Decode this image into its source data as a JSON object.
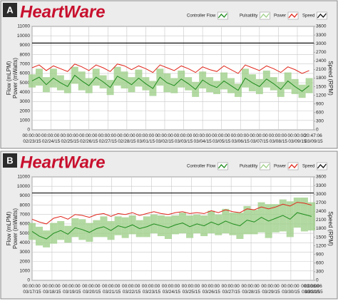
{
  "chart_data": [
    {
      "type": "line",
      "panel": "A",
      "title": "HeartWare",
      "ylabel": "Flow (mLPM)",
      "ylabel_secondary": "Power (mWatts)",
      "y2label": "Speed (RPM)",
      "ylim": [
        0,
        11000
      ],
      "yticks": [
        0,
        1000,
        2000,
        3000,
        4000,
        5000,
        6000,
        7000,
        8000,
        9000,
        10000,
        11000
      ],
      "y2lim": [
        0,
        3600
      ],
      "y2ticks": [
        0,
        300,
        600,
        900,
        1200,
        1500,
        1800,
        2100,
        2400,
        2700,
        3000,
        3300,
        3600
      ],
      "xlim": [
        0,
        14.866
      ],
      "xticks": [
        {
          "value": 0,
          "label": "00:00:00 02/23/15"
        },
        {
          "value": 1,
          "label": "00:00:00 02/24/15"
        },
        {
          "value": 2,
          "label": "00:00:00 02/25/15"
        },
        {
          "value": 3,
          "label": "00:00:00 02/26/15"
        },
        {
          "value": 4,
          "label": "00:00:00 02/27/15"
        },
        {
          "value": 5,
          "label": "00:00:00 02/28/15"
        },
        {
          "value": 6,
          "label": "00:00:00 03/01/15"
        },
        {
          "value": 7,
          "label": "00:00:00 03/02/15"
        },
        {
          "value": 8,
          "label": "00:00:00 03/03/15"
        },
        {
          "value": 9,
          "label": "00:00:00 03/04/15"
        },
        {
          "value": 10,
          "label": "00:00:00 03/05/15"
        },
        {
          "value": 11,
          "label": "00:00:00 03/06/15"
        },
        {
          "value": 12,
          "label": "00:00:00 03/07/15"
        },
        {
          "value": 13,
          "label": "00:00:00 03/08/15"
        },
        {
          "value": 14,
          "label": "00:00:00 03/09/15"
        },
        {
          "value": 14.866,
          "label": "20:47:06 03/09/15"
        }
      ],
      "grid": true,
      "x": [
        0,
        0.375,
        0.75,
        1.125,
        1.5,
        1.875,
        2.25,
        2.625,
        3,
        3.375,
        3.75,
        4.125,
        4.5,
        4.875,
        5.25,
        5.625,
        6,
        6.375,
        6.75,
        7.125,
        7.5,
        7.875,
        8.25,
        8.625,
        9,
        9.375,
        9.75,
        10.125,
        10.5,
        10.875,
        11.25,
        11.625,
        12,
        12.375,
        12.75,
        13.125,
        13.5,
        13.875,
        14.25,
        14.625
      ],
      "series": [
        {
          "name": "Controller Flow",
          "color": "#1e8c1e",
          "values": [
            5200,
            5600,
            4800,
            5500,
            5000,
            4600,
            5800,
            5200,
            4700,
            5600,
            5100,
            4500,
            5700,
            5300,
            4800,
            5500,
            4900,
            4400,
            5600,
            5000,
            4700,
            5400,
            4900,
            4300,
            5300,
            4800,
            4500,
            5200,
            4700,
            4200,
            5500,
            5000,
            4600,
            5400,
            4900,
            4300,
            5200,
            4600,
            4100,
            4700
          ]
        },
        {
          "name": "Pulsatility",
          "color": "#9fd08a",
          "values": [
            700,
            900,
            800,
            1000,
            800,
            700,
            900,
            1000,
            800,
            900,
            700,
            800,
            1000,
            900,
            800,
            900,
            700,
            800,
            900,
            1000,
            800,
            900,
            700,
            800,
            900,
            800,
            700,
            900,
            800,
            700,
            1000,
            900,
            800,
            900,
            700,
            800,
            900,
            800,
            700,
            800
          ]
        },
        {
          "name": "Power",
          "color": "#e0261b",
          "values": [
            6600,
            6900,
            6300,
            6800,
            6500,
            6200,
            7000,
            6700,
            6300,
            6900,
            6600,
            6200,
            7000,
            6800,
            6400,
            6800,
            6500,
            6100,
            6900,
            6600,
            6300,
            6800,
            6500,
            6100,
            6700,
            6400,
            6200,
            6800,
            6400,
            6000,
            6900,
            6600,
            6300,
            6800,
            6500,
            6100,
            6700,
            6400,
            6000,
            6300
          ]
        },
        {
          "name": "Speed",
          "color": "#111111",
          "axis": "y2",
          "x": [
            0,
            14.866
          ],
          "values": [
            3020,
            3020
          ]
        }
      ]
    },
    {
      "type": "line",
      "panel": "B",
      "title": "HeartWare",
      "ylabel": "Flow (mLPM)",
      "ylabel_secondary": "Power (mWatts)",
      "y2label": "Speed (RPM)",
      "ylim": [
        0,
        11000
      ],
      "yticks": [
        0,
        1000,
        2000,
        3000,
        4000,
        5000,
        6000,
        7000,
        8000,
        9000,
        10000,
        11000
      ],
      "y2lim": [
        0,
        3600
      ],
      "y2ticks": [
        0,
        300,
        600,
        900,
        1200,
        1500,
        1800,
        2100,
        2400,
        2700,
        3000,
        3300,
        3600
      ],
      "xlim": [
        0,
        14.15
      ],
      "xticks": [
        {
          "value": 0,
          "label": "00:00:00 03/17/15"
        },
        {
          "value": 1,
          "label": "00:00:00 03/18/15"
        },
        {
          "value": 2,
          "label": "00:00:00 03/19/15"
        },
        {
          "value": 3,
          "label": "00:00:00 03/20/15"
        },
        {
          "value": 4,
          "label": "00:00:00 03/21/15"
        },
        {
          "value": 5,
          "label": "00:00:00 03/22/15"
        },
        {
          "value": 6,
          "label": "00:00:00 03/23/15"
        },
        {
          "value": 7,
          "label": "00:00:00 03/24/15"
        },
        {
          "value": 8,
          "label": "00:00:00 03/25/15"
        },
        {
          "value": 9,
          "label": "00:00:00 03/26/15"
        },
        {
          "value": 10,
          "label": "00:00:00 03/27/15"
        },
        {
          "value": 11,
          "label": "00:00:00 03/28/15"
        },
        {
          "value": 12,
          "label": "00:00:00 03/29/15"
        },
        {
          "value": 13,
          "label": "00:00:00 03/30/15"
        },
        {
          "value": 14,
          "label": "00:00:00 03/31/15"
        },
        {
          "value": 14.15,
          "label": "03:36:06 03/31/15"
        }
      ],
      "grid": true,
      "x": [
        0,
        0.36,
        0.72,
        1.08,
        1.44,
        1.8,
        2.16,
        2.52,
        2.88,
        3.24,
        3.6,
        3.96,
        4.32,
        4.68,
        5.04,
        5.4,
        5.76,
        6.12,
        6.48,
        6.84,
        7.2,
        7.56,
        7.92,
        8.28,
        8.64,
        9,
        9.36,
        9.72,
        10.08,
        10.44,
        10.8,
        11.16,
        11.52,
        11.88,
        12.24,
        12.6,
        12.96,
        13.32,
        13.68,
        14.04
      ],
      "series": [
        {
          "name": "Controller Flow",
          "color": "#1e8c1e",
          "values": [
            5200,
            4700,
            4400,
            5000,
            5300,
            4900,
            5600,
            5400,
            5100,
            5500,
            5700,
            5300,
            5800,
            5600,
            5900,
            5500,
            5700,
            6000,
            5800,
            5600,
            5900,
            6100,
            5700,
            6000,
            5800,
            6200,
            5900,
            6300,
            6000,
            5800,
            6400,
            6200,
            6700,
            6300,
            6600,
            6900,
            6500,
            7200,
            7000,
            6800
          ]
        },
        {
          "name": "Pulsatility",
          "color": "#9fd08a",
          "values": [
            900,
            1000,
            900,
            1100,
            1000,
            900,
            1000,
            1100,
            1000,
            900,
            1100,
            1000,
            1000,
            1100,
            1000,
            900,
            1100,
            1000,
            1100,
            1200,
            1000,
            1100,
            1200,
            1000,
            1100,
            1200,
            1100,
            1300,
            1200,
            1400,
            1500,
            1300,
            1600,
            1800,
            1500,
            1700,
            1900,
            1600,
            1800,
            1500
          ]
        },
        {
          "name": "Power",
          "color": "#e0261b",
          "values": [
            6500,
            6200,
            6000,
            6600,
            6800,
            6500,
            7000,
            6900,
            6700,
            7000,
            7100,
            6800,
            7100,
            7000,
            7200,
            6900,
            7100,
            7300,
            7100,
            7000,
            7200,
            7300,
            7100,
            7200,
            7100,
            7400,
            7200,
            7500,
            7300,
            7200,
            7600,
            7500,
            7800,
            7600,
            7800,
            8100,
            7900,
            8300,
            8200,
            8000
          ]
        },
        {
          "name": "Speed",
          "color": "#111111",
          "axis": "y2",
          "x": [
            0,
            14.15
          ],
          "values": [
            3040,
            3040
          ]
        }
      ]
    }
  ]
}
